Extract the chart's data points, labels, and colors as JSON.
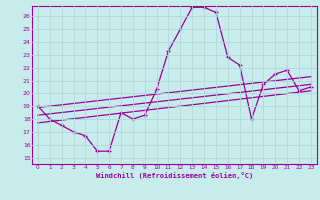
{
  "xlabel": "Windchill (Refroidissement éolien,°C)",
  "xlim": [
    -0.5,
    23.5
  ],
  "ylim": [
    14.5,
    26.8
  ],
  "yticks": [
    15,
    16,
    17,
    18,
    19,
    20,
    21,
    22,
    23,
    24,
    25,
    26
  ],
  "xticks": [
    0,
    1,
    2,
    3,
    4,
    5,
    6,
    7,
    8,
    9,
    10,
    11,
    12,
    13,
    14,
    15,
    16,
    17,
    18,
    19,
    20,
    21,
    22,
    23
  ],
  "background_color": "#c8ecec",
  "grid_color": "#b0d8d8",
  "line_color": "#990099",
  "main_line": {
    "x": [
      0,
      1,
      2,
      3,
      4,
      5,
      6,
      7,
      8,
      9,
      10,
      11,
      12,
      13,
      14,
      15,
      16,
      17,
      18,
      19,
      20,
      21,
      22,
      23
    ],
    "y": [
      19.0,
      18.0,
      17.5,
      17.0,
      16.7,
      15.5,
      15.5,
      18.5,
      18.0,
      18.3,
      20.3,
      23.3,
      25.0,
      26.7,
      26.7,
      26.3,
      22.8,
      22.2,
      18.0,
      20.7,
      21.5,
      21.8,
      20.2,
      20.5
    ]
  },
  "trend_lines": [
    {
      "x": [
        0,
        23
      ],
      "y": [
        17.7,
        20.2
      ]
    },
    {
      "x": [
        0,
        23
      ],
      "y": [
        18.3,
        20.7
      ]
    },
    {
      "x": [
        0,
        23
      ],
      "y": [
        18.9,
        21.3
      ]
    }
  ],
  "marker": "+"
}
